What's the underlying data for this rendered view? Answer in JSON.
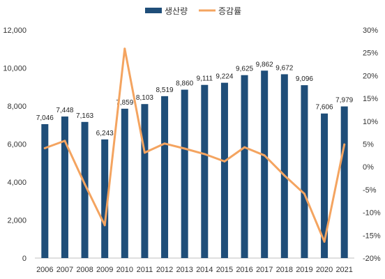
{
  "chart_data": {
    "type": "bar",
    "categories": [
      "2006",
      "2007",
      "2008",
      "2009",
      "2010",
      "2011",
      "2012",
      "2013",
      "2014",
      "2015",
      "2016",
      "2017",
      "2018",
      "2019",
      "2020",
      "2021"
    ],
    "series": [
      {
        "name": "생산량",
        "type": "bar",
        "axis": "left",
        "color": "#1f4e79",
        "values": [
          7046,
          7448,
          7163,
          6243,
          7859,
          8103,
          8519,
          8860,
          9111,
          9224,
          9625,
          9862,
          9672,
          9096,
          7606,
          7979
        ],
        "labels": [
          "7,046",
          "7,448",
          "7,163",
          "6,243",
          "7,859",
          "8,103",
          "8,519",
          "8,860",
          "9,111",
          "9,224",
          "9,625",
          "9,862",
          "9,672",
          "9,096",
          "7,606",
          "7,979"
        ]
      },
      {
        "name": "증감률",
        "type": "line",
        "axis": "right",
        "color": "#f4a460",
        "values": [
          4.1,
          5.7,
          -3.8,
          -12.8,
          25.9,
          3.1,
          5.1,
          4.0,
          2.8,
          1.2,
          4.3,
          2.5,
          -1.9,
          -5.9,
          -16.4,
          4.9
        ]
      }
    ],
    "y_left": {
      "ylim": [
        0,
        12000
      ],
      "ticks": [
        "0",
        "2,000",
        "4,000",
        "6,000",
        "8,000",
        "10,000",
        "12,000"
      ]
    },
    "y_right": {
      "ylim": [
        -20,
        30
      ],
      "ticks": [
        "-20%",
        "-15%",
        "-10%",
        "-5%",
        "0%",
        "5%",
        "10%",
        "15%",
        "20%",
        "25%",
        "30%"
      ]
    },
    "grid": false,
    "legend": "top-center"
  }
}
